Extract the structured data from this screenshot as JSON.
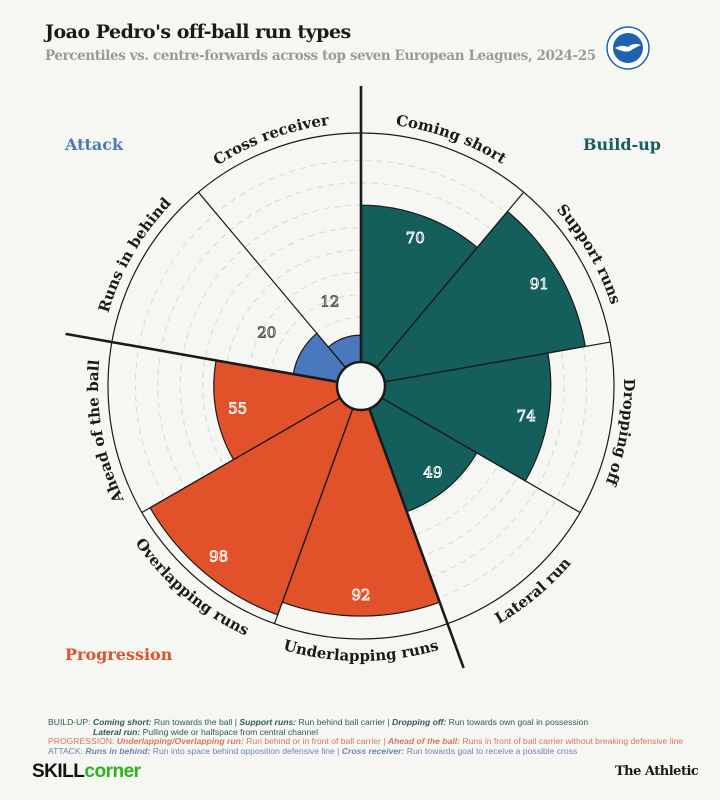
{
  "header": {
    "title": "Joao Pedro's off-ball run types",
    "subtitle": "Percentiles vs. centre-forwards across top seven European Leagues, 2024-25",
    "crest_icon": "brighton-crest-icon"
  },
  "chart_data": {
    "type": "polar-bar",
    "title": "Joao Pedro's off-ball run types",
    "subtitle": "Percentiles vs. centre-forwards across top seven European Leagues, 2024-25",
    "scale": [
      0,
      100
    ],
    "grid": true,
    "categories": [
      "Coming short",
      "Support runs",
      "Dropping off",
      "Lateral run",
      "Underlapping runs",
      "Overlapping runs",
      "Ahead of the ball",
      "Runs in behind",
      "Cross receiver"
    ],
    "values": [
      70,
      91,
      74,
      49,
      92,
      98,
      55,
      20,
      12
    ],
    "groups": [
      "build-up",
      "build-up",
      "build-up",
      "build-up",
      "progression",
      "progression",
      "progression",
      "attack",
      "attack"
    ],
    "group_labels": [
      {
        "key": "attack",
        "label": "Attack",
        "color": "#4a78b8"
      },
      {
        "key": "build-up",
        "label": "Build-up",
        "color": "#175f5c"
      },
      {
        "key": "progression",
        "label": "Progression",
        "color": "#e1512a"
      }
    ]
  },
  "colors": {
    "build-up": "#145e5b",
    "progression": "#e1522b",
    "attack": "#4a78bd",
    "background": "#f6f6f3"
  },
  "footnotes": {
    "buildup_prefix": "BUILD-UP: ",
    "buildup_t1": "Coming short:",
    "buildup_d1": " Run towards the ball | ",
    "buildup_t2": "Support runs:",
    "buildup_d2": " Run behind ball carrier | ",
    "buildup_t3": "Dropping off:",
    "buildup_d3": " Run towards own goal in possession",
    "buildup_t4": "Lateral run:",
    "buildup_d4": " Pulling wide or halfspace from central channel",
    "prog_prefix": "PROGRESSION: ",
    "prog_t1": "Underlapping/Overlapping run:",
    "prog_d1": " Run behind or in front of ball carrier | ",
    "prog_t2": "Ahead of the ball:",
    "prog_d2": " Runs in front of ball carrier without breaking defensive line",
    "attack_prefix": "ATTACK: ",
    "attack_t1": "Runs in behind:",
    "attack_d1": " Run into space behind opposition defensive line | ",
    "attack_t2": "Cross receiver:",
    "attack_d2": " Run towards goal to receive a possible cross"
  },
  "footer": {
    "skill_part1": "SKILL",
    "skill_part2": "corner",
    "publisher": "The Athletic"
  }
}
